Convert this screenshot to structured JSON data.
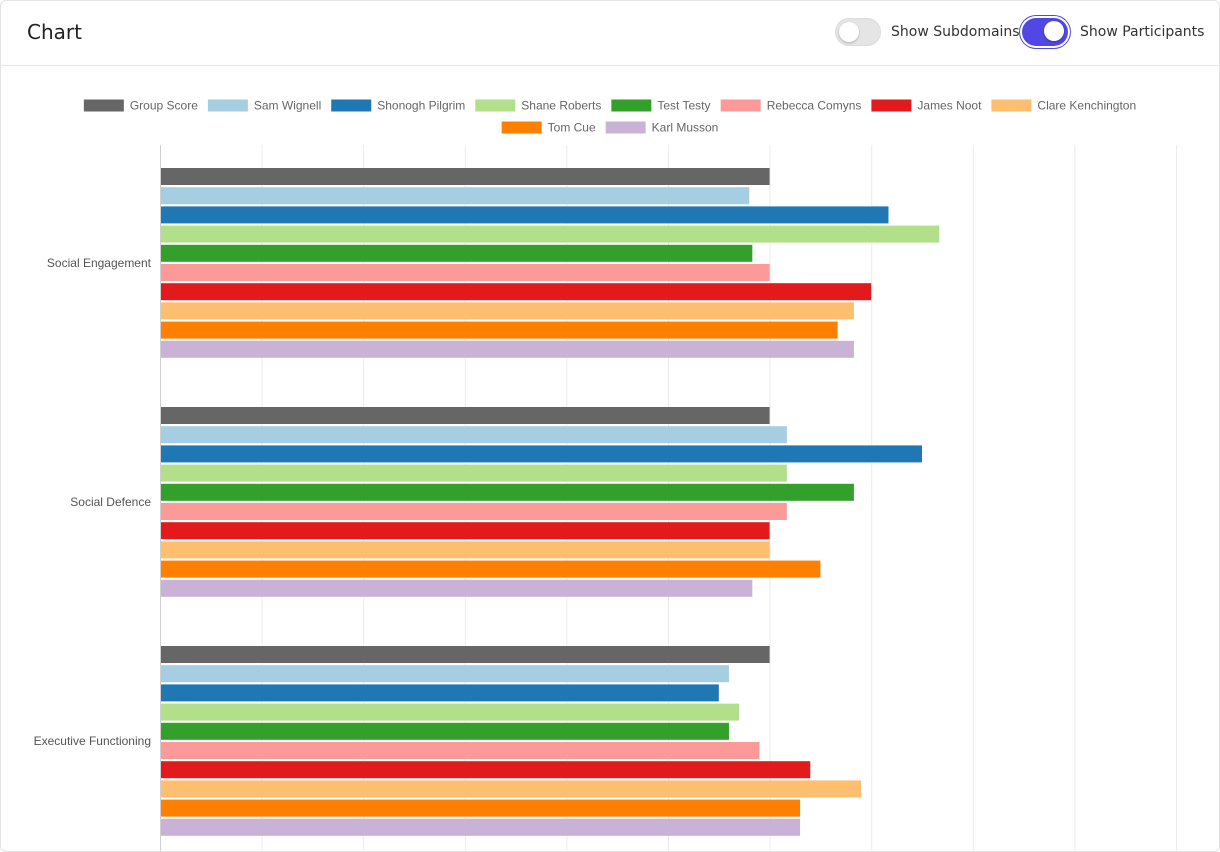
{
  "header": {
    "title": "Chart",
    "toggles": {
      "subdomains": {
        "label": "Show Subdomains",
        "on": false
      },
      "participants": {
        "label": "Show Participants",
        "on": true
      }
    }
  },
  "chart_data": {
    "type": "bar",
    "orientation": "horizontal",
    "categories": [
      "Social Engagement",
      "Social Defence",
      "Executive Functioning"
    ],
    "xlim": [
      0,
      10
    ],
    "grid": true,
    "legend_position": "top",
    "series": [
      {
        "name": "Group Score",
        "color": "#666666",
        "values": [
          6,
          6,
          6
        ]
      },
      {
        "name": "Sam Wignell",
        "color": "#a6cee3",
        "values": [
          5.8,
          6.17,
          5.6
        ]
      },
      {
        "name": "Shonogh Pilgrim",
        "color": "#1f78b4",
        "values": [
          7.17,
          7.5,
          5.5
        ]
      },
      {
        "name": "Shane Roberts",
        "color": "#b2df8a",
        "values": [
          7.67,
          6.17,
          5.7
        ]
      },
      {
        "name": "Test Testy",
        "color": "#33a02c",
        "values": [
          5.83,
          6.83,
          5.6
        ]
      },
      {
        "name": "Rebecca Comyns",
        "color": "#fb9a99",
        "values": [
          6,
          6.17,
          5.9
        ]
      },
      {
        "name": "James Noot",
        "color": "#e31a1c",
        "values": [
          7,
          6,
          6.4
        ]
      },
      {
        "name": "Clare Kenchington",
        "color": "#fdbf6f",
        "values": [
          6.83,
          6,
          6.9
        ]
      },
      {
        "name": "Tom Cue",
        "color": "#ff7f00",
        "values": [
          6.67,
          6.5,
          6.3
        ]
      },
      {
        "name": "Karl Musson",
        "color": "#cab2d6",
        "values": [
          6.83,
          5.83,
          6.3
        ]
      }
    ]
  }
}
